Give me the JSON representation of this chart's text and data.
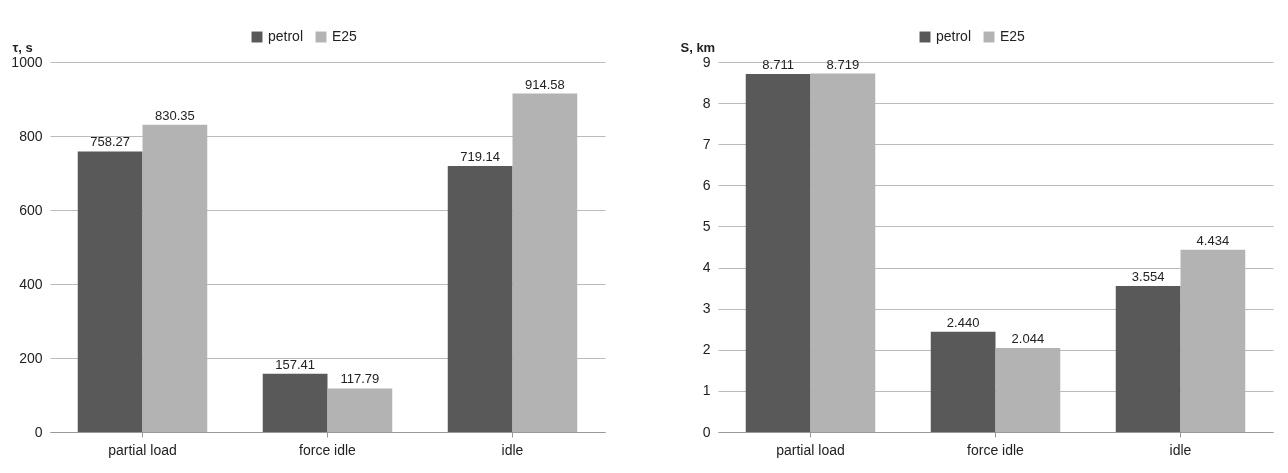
{
  "chart_data": [
    {
      "type": "bar",
      "ylabel": "τ, s",
      "categories": [
        "partial load",
        "force idle",
        "idle"
      ],
      "series": [
        {
          "name": "petrol",
          "color": "#595959",
          "values": [
            758.27,
            157.41,
            719.14
          ]
        },
        {
          "name": "E25",
          "color": "#b3b3b3",
          "values": [
            830.35,
            117.79,
            914.58
          ]
        }
      ],
      "ylim": [
        0,
        1000
      ],
      "yticks": [
        0,
        200,
        400,
        600,
        800,
        1000
      ],
      "grid": "y",
      "legend": "top",
      "data_labels": true
    },
    {
      "type": "bar",
      "ylabel": "S, km",
      "categories": [
        "partial load",
        "force idle",
        "idle"
      ],
      "series": [
        {
          "name": "petrol",
          "color": "#595959",
          "values": [
            8.711,
            2.44,
            3.554
          ],
          "value_labels": [
            "8.711",
            "2.440",
            "3.554"
          ]
        },
        {
          "name": "E25",
          "color": "#b3b3b3",
          "values": [
            8.719,
            2.044,
            4.434
          ],
          "value_labels": [
            "8.719",
            "2.044",
            "4.434"
          ]
        }
      ],
      "ylim": [
        0,
        9
      ],
      "yticks": [
        0,
        1,
        2,
        3,
        4,
        5,
        6,
        7,
        8,
        9
      ],
      "grid": "y",
      "legend": "top"
    }
  ]
}
